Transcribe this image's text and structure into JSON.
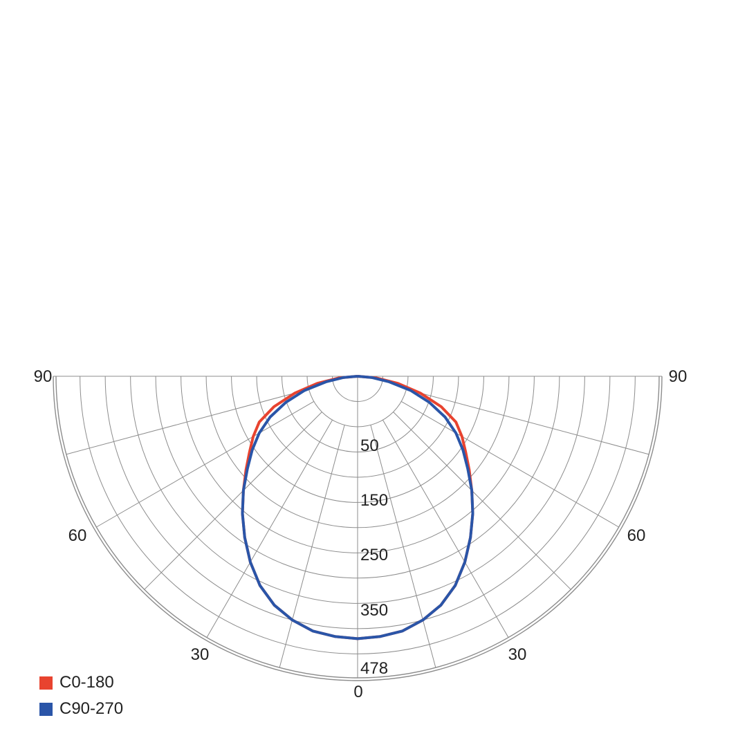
{
  "chart_data": {
    "type": "polar",
    "angle_tick_labels": {
      "left": [
        "90",
        "60",
        "30"
      ],
      "center": "0",
      "right": [
        "30",
        "60",
        "90"
      ]
    },
    "angle_ticks_deg": [
      90,
      60,
      30,
      0,
      30,
      60,
      90
    ],
    "radial_tick_labels": [
      "50",
      "150",
      "250",
      "350",
      "478"
    ],
    "radial_ticks": [
      50,
      150,
      250,
      350,
      478
    ],
    "r_max": 478,
    "series": [
      {
        "name": "C0-180",
        "color": "#e8432f",
        "angles_deg": [
          0,
          5,
          10,
          15,
          20,
          25,
          30,
          35,
          40,
          45,
          50,
          55,
          60,
          65,
          70,
          75,
          80,
          85,
          90
        ],
        "values": [
          416,
          414,
          410,
          400,
          386,
          366,
          340,
          312,
          284,
          256,
          231,
          209,
          191,
          172,
          141,
          103,
          65,
          30,
          0
        ]
      },
      {
        "name": "C90-270",
        "color": "#2a55a8",
        "angles_deg": [
          0,
          5,
          10,
          15,
          20,
          25,
          30,
          35,
          40,
          45,
          50,
          55,
          60,
          65,
          70,
          75,
          80,
          85,
          90
        ],
        "values": [
          416,
          414,
          410,
          400,
          386,
          366,
          340,
          312,
          284,
          256,
          228,
          204,
          180,
          153,
          121,
          87,
          51,
          22,
          0
        ]
      }
    ],
    "legend_position": "bottom-left"
  }
}
